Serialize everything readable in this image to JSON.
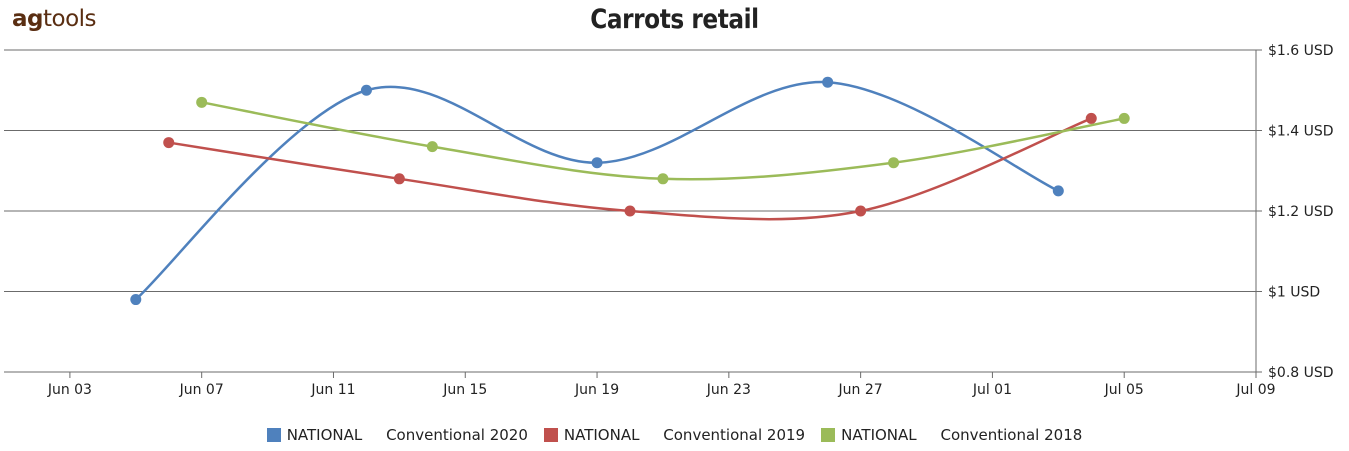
{
  "brand": {
    "part1": "ag",
    "part2": "tools"
  },
  "chart_data": {
    "type": "line",
    "title": "Carrots retail",
    "xlabel": "",
    "ylabel": "",
    "x_ticks": [
      "Jun 03",
      "Jun 07",
      "Jun 11",
      "Jun 15",
      "Jun 19",
      "Jun 23",
      "Jun 27",
      "Jul 01",
      "Jul 05",
      "Jul 09"
    ],
    "y_ticks": [
      "$1.6 USD",
      "$1.4 USD",
      "$1.2 USD",
      "$1 USD",
      "$0.8 USD"
    ],
    "ylim": [
      0.8,
      1.6
    ],
    "xlim": [
      "2020-06-01",
      "2020-07-09"
    ],
    "y_axis_position": "right",
    "grid": true,
    "legend_position": "bottom",
    "series": [
      {
        "name": "NATIONAL     Conventional 2020",
        "color": "#4f81bd",
        "points": [
          {
            "x": "2020-06-05",
            "y": 0.98
          },
          {
            "x": "2020-06-12",
            "y": 1.5
          },
          {
            "x": "2020-06-19",
            "y": 1.32
          },
          {
            "x": "2020-06-26",
            "y": 1.52
          },
          {
            "x": "2020-07-03",
            "y": 1.25
          }
        ]
      },
      {
        "name": "NATIONAL     Conventional 2019",
        "color": "#c0504d",
        "points": [
          {
            "x": "2020-06-06",
            "y": 1.37
          },
          {
            "x": "2020-06-13",
            "y": 1.28
          },
          {
            "x": "2020-06-20",
            "y": 1.2
          },
          {
            "x": "2020-06-27",
            "y": 1.2
          },
          {
            "x": "2020-07-04",
            "y": 1.43
          }
        ]
      },
      {
        "name": "NATIONAL     Conventional 2018",
        "color": "#9bbb59",
        "points": [
          {
            "x": "2020-06-07",
            "y": 1.47
          },
          {
            "x": "2020-06-14",
            "y": 1.36
          },
          {
            "x": "2020-06-21",
            "y": 1.28
          },
          {
            "x": "2020-06-28",
            "y": 1.32
          },
          {
            "x": "2020-07-05",
            "y": 1.43
          }
        ]
      }
    ]
  }
}
